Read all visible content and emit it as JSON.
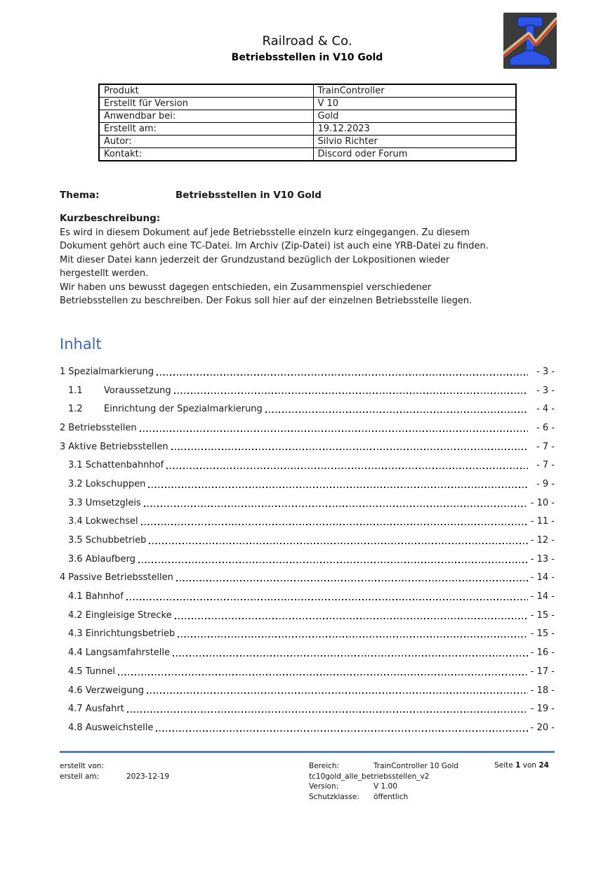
{
  "header": {
    "title": "Railroad & Co.",
    "subtitle": "Betriebsstellen in V10 Gold"
  },
  "logo": {
    "icon": "rail-profile-with-zigzag-chart-line",
    "bg_color": "#3b3b3b",
    "rail_color": "#2f55e6",
    "rail_edge_color": "#16307e",
    "line_outer_color": "#d8b98a",
    "line_inner_color": "#c0392b"
  },
  "info_table": {
    "rows": [
      {
        "label": "Produkt",
        "value": "TrainController"
      },
      {
        "label": "Erstellt für Version",
        "value": "V 10"
      },
      {
        "label": "Anwendbar bei:",
        "value": "Gold"
      },
      {
        "label": "Erstellt am:",
        "value": "19.12.2023"
      },
      {
        "label": "Autor:",
        "value": "Silvio Richter"
      },
      {
        "label": "Kontakt:",
        "value": "Discord oder Forum"
      }
    ]
  },
  "thema": {
    "label": "Thema:",
    "value": "Betriebsstellen in V10 Gold"
  },
  "kurzbeschreibung": {
    "label": "Kurzbeschreibung:",
    "lines": [
      "Es wird in diesem Dokument auf jede Betriebsstelle einzeln kurz eingegangen. Zu diesem",
      "Dokument gehört auch eine TC-Datei. Im Archiv (Zip-Datei) ist auch eine YRB-Datei zu finden.",
      "Mit dieser Datei kann jederzeit der Grundzustand bezüglich der Lokpositionen wieder",
      "hergestellt werden.",
      "Wir haben uns bewusst dagegen entschieden, ein Zusammenspiel verschiedener",
      "Betriebsstellen zu beschreiben. Der Fokus soll hier auf der einzelnen Betriebsstelle liegen."
    ]
  },
  "toc": {
    "heading": "Inhalt",
    "heading_color": "#3D64B8",
    "entries": [
      {
        "indent": 0,
        "num": "1",
        "title": "Spezialmarkierung",
        "tab": false,
        "page": "- 3 -"
      },
      {
        "indent": 1,
        "num": "1.1",
        "title": "Voraussetzung",
        "tab": true,
        "page": "- 3 -"
      },
      {
        "indent": 1,
        "num": "1.2",
        "title": "Einrichtung der Spezialmarkierung",
        "tab": true,
        "page": "- 4 -"
      },
      {
        "indent": 0,
        "num": "2",
        "title": "Betriebsstellen",
        "tab": false,
        "page": "- 6 -"
      },
      {
        "indent": 0,
        "num": "3",
        "title": "Aktive Betriebsstellen",
        "tab": false,
        "page": "- 7 -"
      },
      {
        "indent": 1,
        "num": "3.1",
        "title": "Schattenbahnhof",
        "tab": false,
        "page": "- 7 -"
      },
      {
        "indent": 1,
        "num": "3.2",
        "title": "Lokschuppen",
        "tab": false,
        "page": "- 9 -"
      },
      {
        "indent": 1,
        "num": "3.3",
        "title": "Umsetzgleis",
        "tab": false,
        "page": "- 10 -"
      },
      {
        "indent": 1,
        "num": "3.4",
        "title": "Lokwechsel",
        "tab": false,
        "page": "- 11 -"
      },
      {
        "indent": 1,
        "num": "3.5",
        "title": "Schubbetrieb",
        "tab": false,
        "page": "- 12 -"
      },
      {
        "indent": 1,
        "num": "3.6",
        "title": "Ablaufberg",
        "tab": false,
        "page": "- 13 -"
      },
      {
        "indent": 0,
        "num": "4",
        "title": "Passive Betriebsstellen",
        "tab": false,
        "page": "- 14 -"
      },
      {
        "indent": 1,
        "num": "4.1",
        "title": "Bahnhof",
        "tab": false,
        "page": "- 14 -"
      },
      {
        "indent": 1,
        "num": "4.2",
        "title": "Eingleisige Strecke",
        "tab": false,
        "page": "- 15 -"
      },
      {
        "indent": 1,
        "num": "4.3",
        "title": "Einrichtungsbetrieb",
        "tab": false,
        "page": "- 15 -"
      },
      {
        "indent": 1,
        "num": "4.4",
        "title": "Langsamfahrstelle",
        "tab": false,
        "page": "- 16 -"
      },
      {
        "indent": 1,
        "num": "4.5",
        "title": "Tunnel",
        "tab": false,
        "page": "- 17 -"
      },
      {
        "indent": 1,
        "num": "4.6",
        "title": "Verzweigung",
        "tab": false,
        "page": "- 18 -"
      },
      {
        "indent": 1,
        "num": "4.7",
        "title": "Ausfahrt",
        "tab": false,
        "page": "- 19 -"
      },
      {
        "indent": 1,
        "num": "4.8",
        "title": "Ausweichstelle",
        "tab": false,
        "page": "- 20 -"
      }
    ]
  },
  "footer": {
    "left": {
      "created_by_label": "erstellt von:",
      "created_on_label": "erstell am:",
      "created_on_value": "2023-12-19"
    },
    "center": {
      "bereich_label": "Bereich:",
      "bereich_value": "TrainController 10 Gold",
      "filename": "tc10gold_alle_betriebsstellen_v2",
      "version_label": "Version:",
      "version_value": "V 1.00",
      "schutzklasse_label": "Schutzklasse:",
      "schutzklasse_value": "öffentlich"
    },
    "right": {
      "seite_label": "Seite",
      "page_current": "1",
      "von_label": "von",
      "page_total": "24"
    }
  }
}
